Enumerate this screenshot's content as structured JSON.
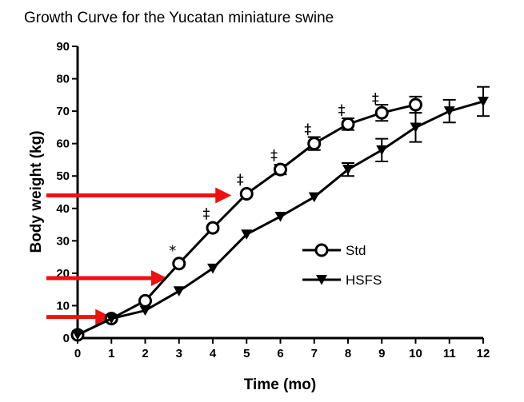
{
  "chart_data": {
    "type": "line",
    "title": "Growth Curve for the Yucatan miniature swine",
    "xlabel": "Time (mo)",
    "ylabel": "Body weight (kg)",
    "xlim": [
      0,
      12
    ],
    "ylim": [
      0,
      90
    ],
    "x_ticks": [
      "0",
      "1",
      "2",
      "3",
      "4",
      "5",
      "6",
      "7",
      "8",
      "9",
      "10",
      "11",
      "12"
    ],
    "y_ticks": [
      "0",
      "10",
      "20",
      "30",
      "40",
      "50",
      "60",
      "70",
      "80",
      "90"
    ],
    "grid": false,
    "legend_position": "right",
    "series": [
      {
        "name": "Std",
        "marker": "open-circle",
        "x": [
          0,
          1,
          2,
          3,
          4,
          5,
          6,
          7,
          8,
          9,
          10
        ],
        "y": [
          1,
          6,
          11.5,
          23,
          34,
          44.5,
          52,
          60,
          66,
          69.5,
          72
        ],
        "error": [
          0,
          0,
          0,
          0,
          0,
          0,
          1.5,
          2,
          1.8,
          2.5,
          2.5
        ]
      },
      {
        "name": "HSFS",
        "marker": "filled-triangle-down",
        "x": [
          0,
          1,
          2,
          3,
          4,
          5,
          6,
          7,
          8,
          9,
          10,
          11,
          12
        ],
        "y": [
          1,
          6,
          8.5,
          14.5,
          21.5,
          32,
          37.5,
          43.5,
          52,
          58,
          65,
          70,
          73
        ],
        "error": [
          0,
          0,
          0,
          0,
          0,
          0,
          0,
          0,
          2,
          3.5,
          4.5,
          3.5,
          4.5
        ]
      }
    ],
    "annotations": [
      {
        "text": "*",
        "x": 3,
        "y": 23
      },
      {
        "text": "‡",
        "x": 4,
        "y": 34
      },
      {
        "text": "‡",
        "x": 5,
        "y": 44.5
      },
      {
        "text": "‡",
        "x": 6,
        "y": 52
      },
      {
        "text": "‡",
        "x": 7,
        "y": 60
      },
      {
        "text": "‡",
        "x": 8,
        "y": 66
      },
      {
        "text": "‡",
        "x": 9,
        "y": 69.5
      }
    ],
    "arrows": [
      {
        "y": 6.5,
        "x_end": 1
      },
      {
        "y": 18.5,
        "x_end": 2.65
      },
      {
        "y": 44,
        "x_end": 4.55
      }
    ],
    "colors": {
      "series": "#000000",
      "arrow": "#ee1111"
    }
  }
}
